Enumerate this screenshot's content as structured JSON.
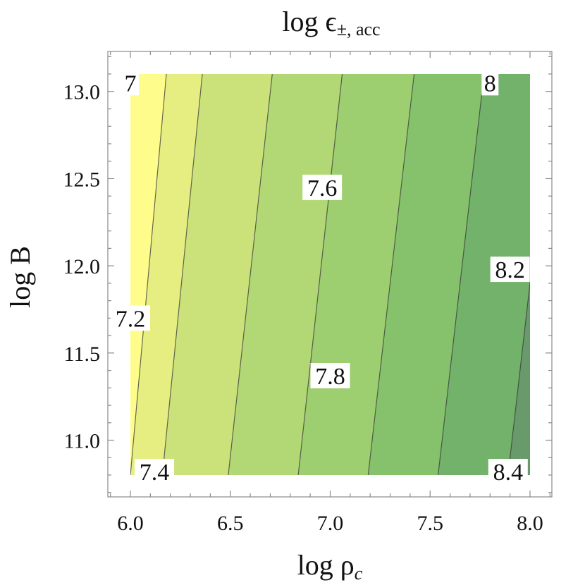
{
  "chart_data": {
    "type": "contour",
    "title": "log ϵ±, acc",
    "title_main": "log ϵ",
    "title_sub": "±, acc",
    "xlabel_main": "log ρ",
    "xlabel_sub": "c",
    "ylabel": "log B",
    "xlim": [
      6.0,
      8.0
    ],
    "ylim": [
      10.8,
      13.1
    ],
    "x_ticks": [
      6.0,
      6.5,
      7.0,
      7.5,
      8.0
    ],
    "x_tick_labels": [
      "6.0",
      "6.5",
      "7.0",
      "7.5",
      "8.0"
    ],
    "y_ticks": [
      11.0,
      11.5,
      12.0,
      12.5,
      13.0
    ],
    "y_tick_labels": [
      "11.0",
      "11.5",
      "12.0",
      "12.5",
      "13.0"
    ],
    "contour_levels": [
      7.1,
      7.2,
      7.3,
      7.4,
      7.5,
      7.6,
      7.7,
      7.8,
      7.9,
      8.0,
      8.1,
      8.2,
      8.3,
      8.4
    ],
    "contour_lines": [
      {
        "level": 7.1,
        "x_at_ylim_min": 6.0,
        "x_at_ylim_max": 6.18
      },
      {
        "level": 7.2,
        "x_at_ylim_min": 6.16,
        "x_at_ylim_max": 6.36
      },
      {
        "level": 7.3,
        "x_at_ylim_min": 6.49,
        "x_at_ylim_max": 6.71
      },
      {
        "level": 7.4,
        "x_at_ylim_min": 6.84,
        "x_at_ylim_max": 7.06
      },
      {
        "level": 7.5,
        "x_at_ylim_min": 7.19,
        "x_at_ylim_max": 7.42
      },
      {
        "level": 7.6,
        "x_at_ylim_min": 7.54,
        "x_at_ylim_max": 7.77
      },
      {
        "level": 7.7,
        "x_at_ylim_min": 7.89,
        "x_at_ylim_max": 8.12
      }
    ],
    "contour_labels": [
      {
        "text": "7",
        "x": 6.0,
        "y": 13.05
      },
      {
        "text": "7.2",
        "x": 6.0,
        "y": 11.7
      },
      {
        "text": "7.4",
        "x": 6.12,
        "y": 10.82
      },
      {
        "text": "7.6",
        "x": 6.96,
        "y": 12.45
      },
      {
        "text": "7.8",
        "x": 7.0,
        "y": 11.37
      },
      {
        "text": "8",
        "x": 7.8,
        "y": 13.05
      },
      {
        "text": "8.2",
        "x": 7.9,
        "y": 11.98
      },
      {
        "text": "8.4",
        "x": 7.89,
        "y": 10.82
      }
    ],
    "colormap": [
      "#fefc8b",
      "#e6ee82",
      "#cbe27b",
      "#b2d875",
      "#9dce70",
      "#86c26b",
      "#72b26a",
      "#699a6b",
      "#5f7e62"
    ],
    "grid": false
  }
}
